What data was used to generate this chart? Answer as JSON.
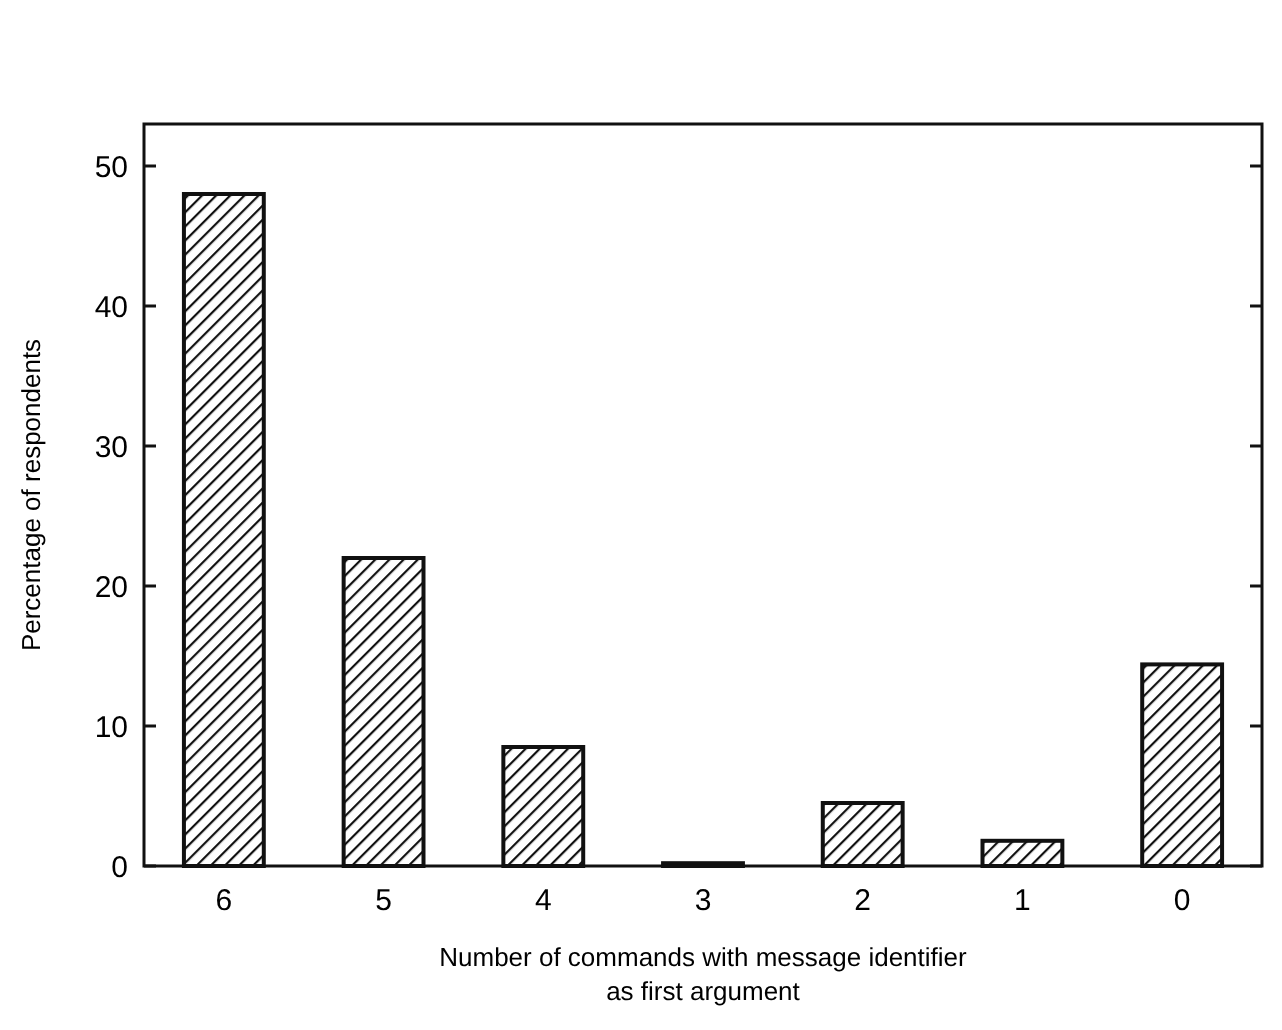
{
  "chart_data": {
    "type": "bar",
    "xlabel": "Number of commands with message identifier\nas first argument",
    "ylabel": "Percentage of respondents",
    "categories": [
      "6",
      "5",
      "4",
      "3",
      "2",
      "1",
      "0"
    ],
    "values": [
      48,
      22,
      8.5,
      0.2,
      4.5,
      1.8,
      14.4
    ],
    "color": "#111111",
    "ylim": [
      0,
      53
    ],
    "yticks": [
      0,
      10,
      20,
      30,
      40,
      50
    ],
    "grid": false
  }
}
